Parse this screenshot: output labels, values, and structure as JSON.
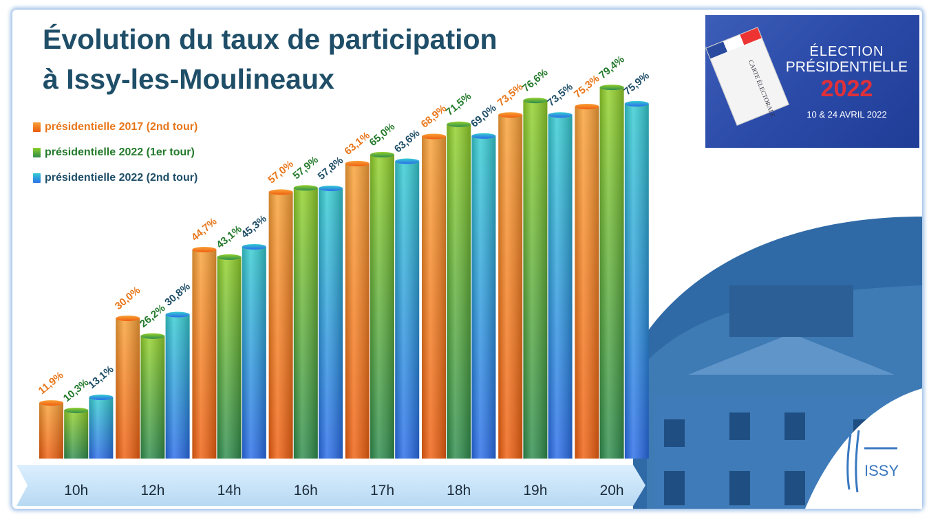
{
  "title_line1": "Évolution du taux de participation",
  "title_line2": "à Issy-les-Moulineaux",
  "badge": {
    "line1": "ÉLECTION",
    "line2": "PRÉSIDENTIELLE",
    "line3": "2022",
    "line4": "10 & 24 AVRIL 2022",
    "card_text": "CARTE ÉLECTORALE",
    "card_icon": "voter-card-icon"
  },
  "logo_text": "ISSY",
  "colors": {
    "series_2017": "#f07d1a",
    "series_2022_t1": "#5aa52a",
    "series_2022_t2": "#2bb6cf",
    "label_2017": "#e8761a",
    "label_2022_t1": "#237a2b",
    "label_2022_t2": "#1e4e68",
    "axis_band": "#cfe6f7"
  },
  "chart_data": {
    "type": "bar",
    "categories": [
      "10h",
      "12h",
      "14h",
      "16h",
      "17h",
      "18h",
      "19h",
      "20h"
    ],
    "series": [
      {
        "name": "présidentielle 2017 (2nd tour)",
        "values": [
          11.9,
          30.0,
          44.7,
          57.0,
          63.1,
          68.9,
          73.5,
          75.3
        ],
        "labels": [
          "11,9%",
          "30,0%",
          "44,7%",
          "57,0%",
          "63,1%",
          "68,9%",
          "73,5%",
          "75,3%"
        ]
      },
      {
        "name": "présidentielle 2022 (1er tour)",
        "values": [
          10.3,
          26.2,
          43.1,
          57.9,
          65.0,
          71.5,
          76.6,
          79.4
        ],
        "labels": [
          "10,3%",
          "26,2%",
          "43,1%",
          "57,9%",
          "65,0%",
          "71,5%",
          "76,6%",
          "79,4%"
        ]
      },
      {
        "name": "présidentielle 2022 (2nd tour)",
        "values": [
          13.1,
          30.8,
          45.3,
          57.8,
          63.6,
          69.0,
          73.5,
          75.9
        ],
        "labels": [
          "13,1%",
          "30,8%",
          "45,3%",
          "57,8%",
          "63,6%",
          "69,0%",
          "73,5%",
          "75,9%"
        ]
      }
    ],
    "ylim": [
      0,
      100
    ],
    "grid": false,
    "legend_position": "top-left"
  }
}
